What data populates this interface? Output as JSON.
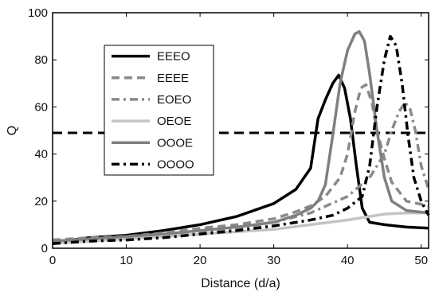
{
  "chart_data": {
    "type": "line",
    "xlabel": "Distance (d/a)",
    "ylabel": "Q",
    "xlim": [
      0,
      51
    ],
    "ylim": [
      0,
      100
    ],
    "xticks": [
      0,
      10,
      20,
      30,
      40,
      50
    ],
    "yticks": [
      0,
      20,
      40,
      60,
      80,
      100
    ],
    "legend_position": "upper-left",
    "reference_line": {
      "y": 49,
      "style": "dashed",
      "color": "#000000"
    },
    "series": [
      {
        "name": "EEEO",
        "color": "#000000",
        "dash": "solid",
        "x": [
          0,
          5,
          10,
          15,
          20,
          25,
          30,
          33,
          35,
          36,
          37,
          38,
          38.8,
          39.6,
          40.4,
          41.2,
          42,
          43,
          45,
          48,
          51
        ],
        "y": [
          2.5,
          4.5,
          5.5,
          7.5,
          10,
          13.5,
          19,
          25,
          34,
          55,
          63,
          70,
          73.5,
          68,
          55,
          35,
          17,
          11,
          10,
          9,
          8.5
        ]
      },
      {
        "name": "EEEE",
        "color": "#8a8a8a",
        "dash": "dashed",
        "x": [
          0,
          5,
          10,
          15,
          20,
          25,
          30,
          33,
          35,
          37,
          39,
          40,
          41,
          41.8,
          42.5,
          43.3,
          44,
          45,
          46,
          48,
          51
        ],
        "y": [
          3.5,
          4.5,
          5,
          6.5,
          8.5,
          10,
          12.5,
          15.5,
          18,
          22,
          30,
          40,
          58,
          68,
          69.5,
          62,
          50,
          38,
          28,
          20,
          18
        ]
      },
      {
        "name": "EOEO",
        "color": "#8a8a8a",
        "dash": "dashdot",
        "x": [
          0,
          5,
          10,
          15,
          20,
          25,
          30,
          35,
          40,
          43,
          45,
          46,
          47,
          47.8,
          48.5,
          49.2,
          50,
          51
        ],
        "y": [
          2.5,
          4,
          4.5,
          5.5,
          7,
          8.5,
          11,
          15,
          22,
          30,
          40,
          50,
          58,
          62,
          59,
          50,
          35,
          25
        ]
      },
      {
        "name": "OEOE",
        "color": "#c4c4c4",
        "dash": "solid",
        "x": [
          0,
          5,
          10,
          15,
          20,
          25,
          30,
          35,
          40,
          45,
          48,
          51
        ],
        "y": [
          2,
          3,
          4,
          5,
          6,
          7,
          8,
          10,
          12,
          14.5,
          15,
          15
        ]
      },
      {
        "name": "OOOE",
        "color": "#808080",
        "dash": "solid",
        "x": [
          0,
          5,
          10,
          15,
          20,
          25,
          30,
          33,
          35,
          36,
          37,
          38,
          39,
          40,
          41,
          41.6,
          42.3,
          43,
          44,
          45,
          46,
          48,
          51
        ],
        "y": [
          3,
          4,
          5,
          6,
          7.5,
          9,
          11,
          14,
          17,
          20,
          27,
          48,
          70,
          84,
          91,
          92,
          88,
          74,
          50,
          30,
          20,
          16,
          15
        ]
      },
      {
        "name": "OOOO",
        "color": "#000000",
        "dash": "dashdot",
        "x": [
          0,
          5,
          10,
          15,
          20,
          25,
          30,
          35,
          38,
          40,
          42,
          43,
          44,
          45,
          45.8,
          46.6,
          47.4,
          48.2,
          49,
          50,
          51
        ],
        "y": [
          2,
          3,
          3.5,
          4.5,
          6,
          7.5,
          9.5,
          12,
          14,
          17,
          22,
          35,
          60,
          80,
          90,
          86,
          70,
          48,
          30,
          20,
          14
        ]
      }
    ]
  }
}
